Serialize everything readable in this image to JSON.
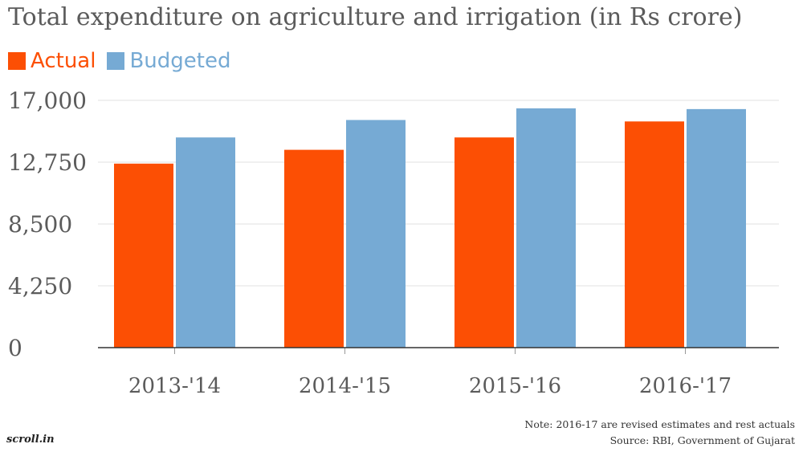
{
  "chart_data": {
    "type": "bar",
    "title": "Total expenditure on  agriculture and irrigation (in Rs crore)",
    "categories": [
      "2013-'14",
      "2014-'15",
      "2015-'16",
      "2016-'17"
    ],
    "series": [
      {
        "name": "Actual",
        "color": "#fc4f04",
        "values": [
          12650,
          13600,
          14450,
          15550
        ]
      },
      {
        "name": "Budgeted",
        "color": "#76aad4",
        "values": [
          14450,
          15650,
          16450,
          16400
        ]
      }
    ],
    "y_ticks": [
      "0",
      "4,250",
      "8,500",
      "12,750",
      "17,000"
    ],
    "y_tick_values": [
      0,
      4250,
      8500,
      12750,
      17000
    ],
    "ylim": [
      0,
      17000
    ],
    "xlabel": "",
    "ylabel": "",
    "grid": true,
    "legend_position": "top-left"
  },
  "footer": {
    "note": "Note: 2016-17 are revised estimates and rest actuals",
    "source": "Source: RBI, Government of Gujarat",
    "logo_text": "scroll.in"
  }
}
